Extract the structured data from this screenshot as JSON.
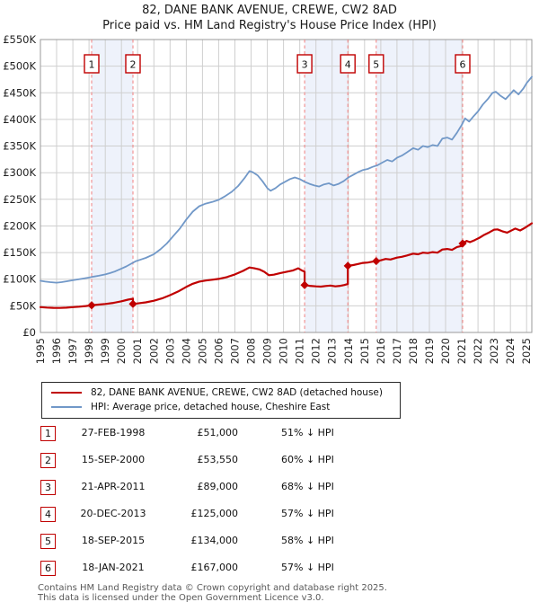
{
  "page": {
    "title": "82, DANE BANK AVENUE, CREWE, CW2 8AD",
    "subtitle": "Price paid vs. HM Land Registry's House Price Index (HPI)"
  },
  "chart_data": {
    "type": "line",
    "x_range": [
      1995,
      2025.32
    ],
    "y_range": [
      0,
      550
    ],
    "x_ticks": [
      1995,
      1996,
      1997,
      1998,
      1999,
      2000,
      2001,
      2002,
      2003,
      2004,
      2005,
      2006,
      2007,
      2008,
      2009,
      2010,
      2011,
      2012,
      2013,
      2014,
      2015,
      2016,
      2017,
      2018,
      2019,
      2020,
      2021,
      2022,
      2023,
      2024,
      2025
    ],
    "y_ticks": [
      0,
      50,
      100,
      150,
      200,
      250,
      300,
      350,
      400,
      450,
      500,
      550
    ],
    "y_tick_prefix": "£",
    "y_tick_suffix": "K",
    "grid": true,
    "legend_position": "below",
    "colors": {
      "property": "#c00000",
      "hpi": "#7198c8",
      "band": "#eef2fb",
      "dashed": "#f28080",
      "grid": "#cfcfcf",
      "border": "#9a9a9a",
      "tick_text": "#222222"
    },
    "series": [
      {
        "name": "82, DANE BANK AVENUE, CREWE, CW2 8AD (detached house)",
        "color": "#c00000",
        "width": 2.2,
        "points": [
          [
            1995.0,
            47.5
          ],
          [
            1995.4,
            46.8
          ],
          [
            1995.8,
            46.2
          ],
          [
            1996.2,
            46.0
          ],
          [
            1996.6,
            46.5
          ],
          [
            1997.0,
            47.5
          ],
          [
            1997.4,
            48.4
          ],
          [
            1997.8,
            49.6
          ],
          [
            1998.16,
            51.0
          ],
          [
            1998.5,
            52.2
          ],
          [
            1999.0,
            53.5
          ],
          [
            1999.5,
            55.5
          ],
          [
            2000.0,
            58.5
          ],
          [
            2000.4,
            61.5
          ],
          [
            2000.71,
            63.5
          ],
          [
            2000.71,
            53.55
          ],
          [
            2001.0,
            54.5
          ],
          [
            2001.5,
            56.5
          ],
          [
            2002.0,
            59.5
          ],
          [
            2002.5,
            64.0
          ],
          [
            2003.0,
            70.0
          ],
          [
            2003.5,
            77.0
          ],
          [
            2004.0,
            85.5
          ],
          [
            2004.4,
            91.5
          ],
          [
            2004.8,
            95.5
          ],
          [
            2005.2,
            97.5
          ],
          [
            2005.6,
            99.0
          ],
          [
            2006.0,
            100.5
          ],
          [
            2006.5,
            104.0
          ],
          [
            2007.0,
            109.0
          ],
          [
            2007.5,
            115.5
          ],
          [
            2007.9,
            122.0
          ],
          [
            2008.2,
            120.5
          ],
          [
            2008.5,
            118.5
          ],
          [
            2008.8,
            114.0
          ],
          [
            2009.1,
            107.5
          ],
          [
            2009.4,
            108.5
          ],
          [
            2009.8,
            111.5
          ],
          [
            2010.2,
            114.0
          ],
          [
            2010.6,
            116.5
          ],
          [
            2010.9,
            120.5
          ],
          [
            2011.1,
            117.0
          ],
          [
            2011.3,
            114.0
          ],
          [
            2011.3,
            89.0
          ],
          [
            2011.6,
            87.5
          ],
          [
            2012.0,
            86.5
          ],
          [
            2012.3,
            86.0
          ],
          [
            2012.6,
            87.2
          ],
          [
            2012.9,
            88.0
          ],
          [
            2013.2,
            86.6
          ],
          [
            2013.5,
            87.5
          ],
          [
            2013.75,
            89.0
          ],
          [
            2013.97,
            91.0
          ],
          [
            2013.97,
            125.0
          ],
          [
            2014.3,
            126.5
          ],
          [
            2014.6,
            128.5
          ],
          [
            2014.9,
            130.5
          ],
          [
            2015.2,
            131.2
          ],
          [
            2015.5,
            133.0
          ],
          [
            2015.72,
            134.0
          ],
          [
            2016.0,
            135.5
          ],
          [
            2016.3,
            138.0
          ],
          [
            2016.6,
            137.0
          ],
          [
            2017.0,
            140.5
          ],
          [
            2017.3,
            142.0
          ],
          [
            2017.6,
            144.5
          ],
          [
            2018.0,
            148.0
          ],
          [
            2018.3,
            146.8
          ],
          [
            2018.6,
            149.8
          ],
          [
            2018.9,
            149.0
          ],
          [
            2019.2,
            150.8
          ],
          [
            2019.5,
            149.8
          ],
          [
            2019.8,
            155.8
          ],
          [
            2020.1,
            156.8
          ],
          [
            2020.4,
            155.0
          ],
          [
            2020.7,
            160.5
          ],
          [
            2021.05,
            163.0
          ],
          [
            2021.05,
            167.0
          ],
          [
            2021.3,
            172.0
          ],
          [
            2021.5,
            169.5
          ],
          [
            2021.8,
            173.5
          ],
          [
            2022.1,
            178.0
          ],
          [
            2022.4,
            183.5
          ],
          [
            2022.7,
            188.0
          ],
          [
            2023.0,
            193.0
          ],
          [
            2023.2,
            193.5
          ],
          [
            2023.5,
            190.0
          ],
          [
            2023.8,
            187.5
          ],
          [
            2024.1,
            192.0
          ],
          [
            2024.3,
            195.0
          ],
          [
            2024.6,
            191.5
          ],
          [
            2024.9,
            196.5
          ],
          [
            2025.1,
            200.5
          ],
          [
            2025.32,
            205.0
          ]
        ]
      },
      {
        "name": "HPI: Average price, detached house, Cheshire East",
        "color": "#7198c8",
        "width": 1.8,
        "points": [
          [
            1995.0,
            97
          ],
          [
            1995.3,
            95.5
          ],
          [
            1995.6,
            94.5
          ],
          [
            1996.0,
            93.5
          ],
          [
            1996.3,
            94.5
          ],
          [
            1996.6,
            96
          ],
          [
            1997.0,
            98
          ],
          [
            1997.3,
            99.5
          ],
          [
            1997.6,
            101
          ],
          [
            1998.0,
            103
          ],
          [
            1998.3,
            105
          ],
          [
            1998.6,
            106.5
          ],
          [
            1999.0,
            109
          ],
          [
            1999.3,
            111.5
          ],
          [
            1999.6,
            114.5
          ],
          [
            2000.0,
            120
          ],
          [
            2000.3,
            124
          ],
          [
            2000.6,
            129
          ],
          [
            2000.9,
            134
          ],
          [
            2001.2,
            137
          ],
          [
            2001.5,
            140
          ],
          [
            2002.0,
            147
          ],
          [
            2002.4,
            156
          ],
          [
            2002.8,
            167
          ],
          [
            2003.2,
            181
          ],
          [
            2003.6,
            195
          ],
          [
            2004.0,
            212
          ],
          [
            2004.4,
            227
          ],
          [
            2004.8,
            237
          ],
          [
            2005.2,
            242
          ],
          [
            2005.6,
            245
          ],
          [
            2006.0,
            249
          ],
          [
            2006.4,
            256
          ],
          [
            2006.8,
            264
          ],
          [
            2007.2,
            275
          ],
          [
            2007.6,
            290
          ],
          [
            2007.9,
            303
          ],
          [
            2008.1,
            301
          ],
          [
            2008.4,
            295
          ],
          [
            2008.7,
            284
          ],
          [
            2009.0,
            271
          ],
          [
            2009.2,
            266
          ],
          [
            2009.5,
            271
          ],
          [
            2009.8,
            278
          ],
          [
            2010.1,
            283
          ],
          [
            2010.4,
            288
          ],
          [
            2010.7,
            291
          ],
          [
            2011.0,
            288
          ],
          [
            2011.3,
            283
          ],
          [
            2011.6,
            279
          ],
          [
            2011.9,
            276
          ],
          [
            2012.2,
            274
          ],
          [
            2012.5,
            278
          ],
          [
            2012.8,
            280
          ],
          [
            2013.1,
            276
          ],
          [
            2013.4,
            279
          ],
          [
            2013.7,
            284
          ],
          [
            2014.0,
            291
          ],
          [
            2014.3,
            296
          ],
          [
            2014.6,
            301
          ],
          [
            2014.9,
            305
          ],
          [
            2015.2,
            307
          ],
          [
            2015.5,
            311
          ],
          [
            2015.8,
            314
          ],
          [
            2016.1,
            319
          ],
          [
            2016.4,
            324
          ],
          [
            2016.7,
            321
          ],
          [
            2017.0,
            328
          ],
          [
            2017.3,
            332
          ],
          [
            2017.6,
            338
          ],
          [
            2018.0,
            346
          ],
          [
            2018.3,
            343
          ],
          [
            2018.6,
            350
          ],
          [
            2018.9,
            348
          ],
          [
            2019.2,
            352
          ],
          [
            2019.5,
            350
          ],
          [
            2019.8,
            364
          ],
          [
            2020.1,
            366
          ],
          [
            2020.4,
            362
          ],
          [
            2020.7,
            375
          ],
          [
            2021.0,
            390
          ],
          [
            2021.2,
            402
          ],
          [
            2021.45,
            396
          ],
          [
            2021.7,
            405
          ],
          [
            2022.0,
            415
          ],
          [
            2022.3,
            428
          ],
          [
            2022.6,
            438
          ],
          [
            2022.9,
            450
          ],
          [
            2023.1,
            452
          ],
          [
            2023.4,
            444
          ],
          [
            2023.7,
            438
          ],
          [
            2024.0,
            448
          ],
          [
            2024.2,
            455
          ],
          [
            2024.5,
            447
          ],
          [
            2024.8,
            458
          ],
          [
            2025.0,
            468
          ],
          [
            2025.32,
            480
          ]
        ]
      }
    ],
    "sales_markers": [
      {
        "num": "1",
        "year": 1998.16,
        "price_k": 51
      },
      {
        "num": "2",
        "year": 2000.71,
        "price_k": 53.55
      },
      {
        "num": "3",
        "year": 2011.3,
        "price_k": 89
      },
      {
        "num": "4",
        "year": 2013.97,
        "price_k": 125
      },
      {
        "num": "5",
        "year": 2015.72,
        "price_k": 134
      },
      {
        "num": "6",
        "year": 2021.05,
        "price_k": 167
      }
    ],
    "shaded_spans": [
      [
        1998.16,
        2000.71
      ],
      [
        2011.3,
        2013.97
      ],
      [
        2015.72,
        2021.05
      ]
    ]
  },
  "legend": {
    "items": [
      {
        "label": "82, DANE BANK AVENUE, CREWE, CW2 8AD (detached house)",
        "color": "#c00000",
        "thickness": 2.5
      },
      {
        "label": "HPI: Average price, detached house, Cheshire East",
        "color": "#7198c8",
        "thickness": 2
      }
    ]
  },
  "sale_table": {
    "rows": [
      {
        "num": "1",
        "date": "27-FEB-1998",
        "price": "£51,000",
        "hpi_diff": "51% ↓ HPI"
      },
      {
        "num": "2",
        "date": "15-SEP-2000",
        "price": "£53,550",
        "hpi_diff": "60% ↓ HPI"
      },
      {
        "num": "3",
        "date": "21-APR-2011",
        "price": "£89,000",
        "hpi_diff": "68% ↓ HPI"
      },
      {
        "num": "4",
        "date": "20-DEC-2013",
        "price": "£125,000",
        "hpi_diff": "57% ↓ HPI"
      },
      {
        "num": "5",
        "date": "18-SEP-2015",
        "price": "£134,000",
        "hpi_diff": "58% ↓ HPI"
      },
      {
        "num": "6",
        "date": "18-JAN-2021",
        "price": "£167,000",
        "hpi_diff": "57% ↓ HPI"
      }
    ]
  },
  "footer": {
    "line1": "Contains HM Land Registry data © Crown copyright and database right 2025.",
    "line2": "This data is licensed under the Open Government Licence v3.0."
  }
}
